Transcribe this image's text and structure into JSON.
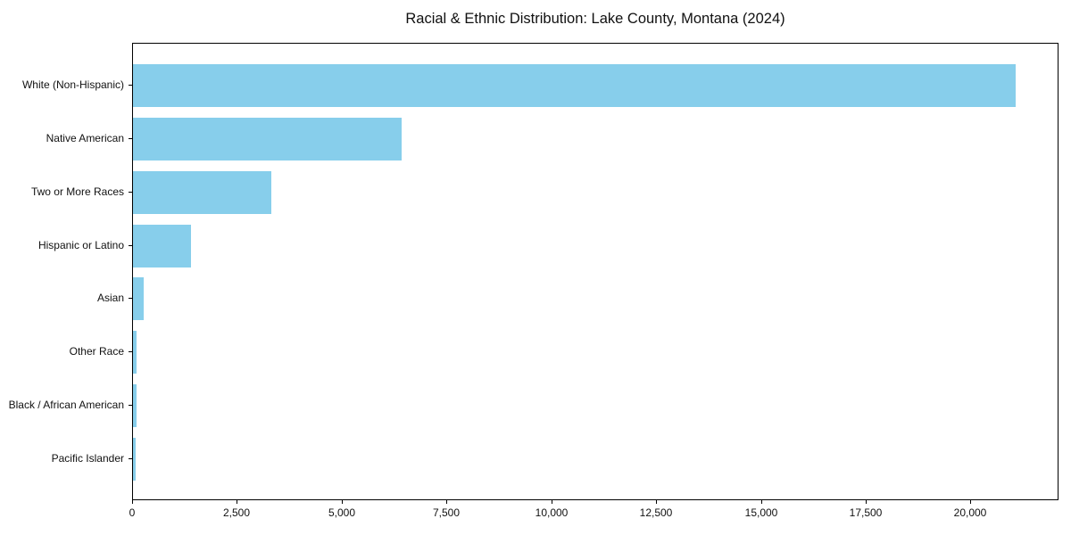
{
  "chart_data": {
    "type": "bar",
    "orientation": "horizontal",
    "title": "Racial & Ethnic Distribution: Lake County, Montana (2024)",
    "categories": [
      "White (Non-Hispanic)",
      "Native American",
      "Two or More Races",
      "Hispanic or Latino",
      "Asian",
      "Other Race",
      "Black / African American",
      "Pacific Islander"
    ],
    "values": [
      21050,
      6400,
      3300,
      1390,
      250,
      90,
      75,
      55
    ],
    "xlabel": "",
    "ylabel": "",
    "xlim": [
      0,
      22100
    ],
    "xticks": [
      0,
      2500,
      5000,
      7500,
      10000,
      12500,
      15000,
      17500,
      20000
    ],
    "xtick_labels": [
      "0",
      "2,500",
      "5,000",
      "7,500",
      "10,000",
      "12,500",
      "15,000",
      "17,500",
      "20,000"
    ],
    "bar_color": "#87CEEB",
    "axis_color": "#000000",
    "text_color": "#111111",
    "background_color": "#ffffff",
    "grid": false,
    "legend_position": "none",
    "bar_height_fraction": 0.8
  }
}
